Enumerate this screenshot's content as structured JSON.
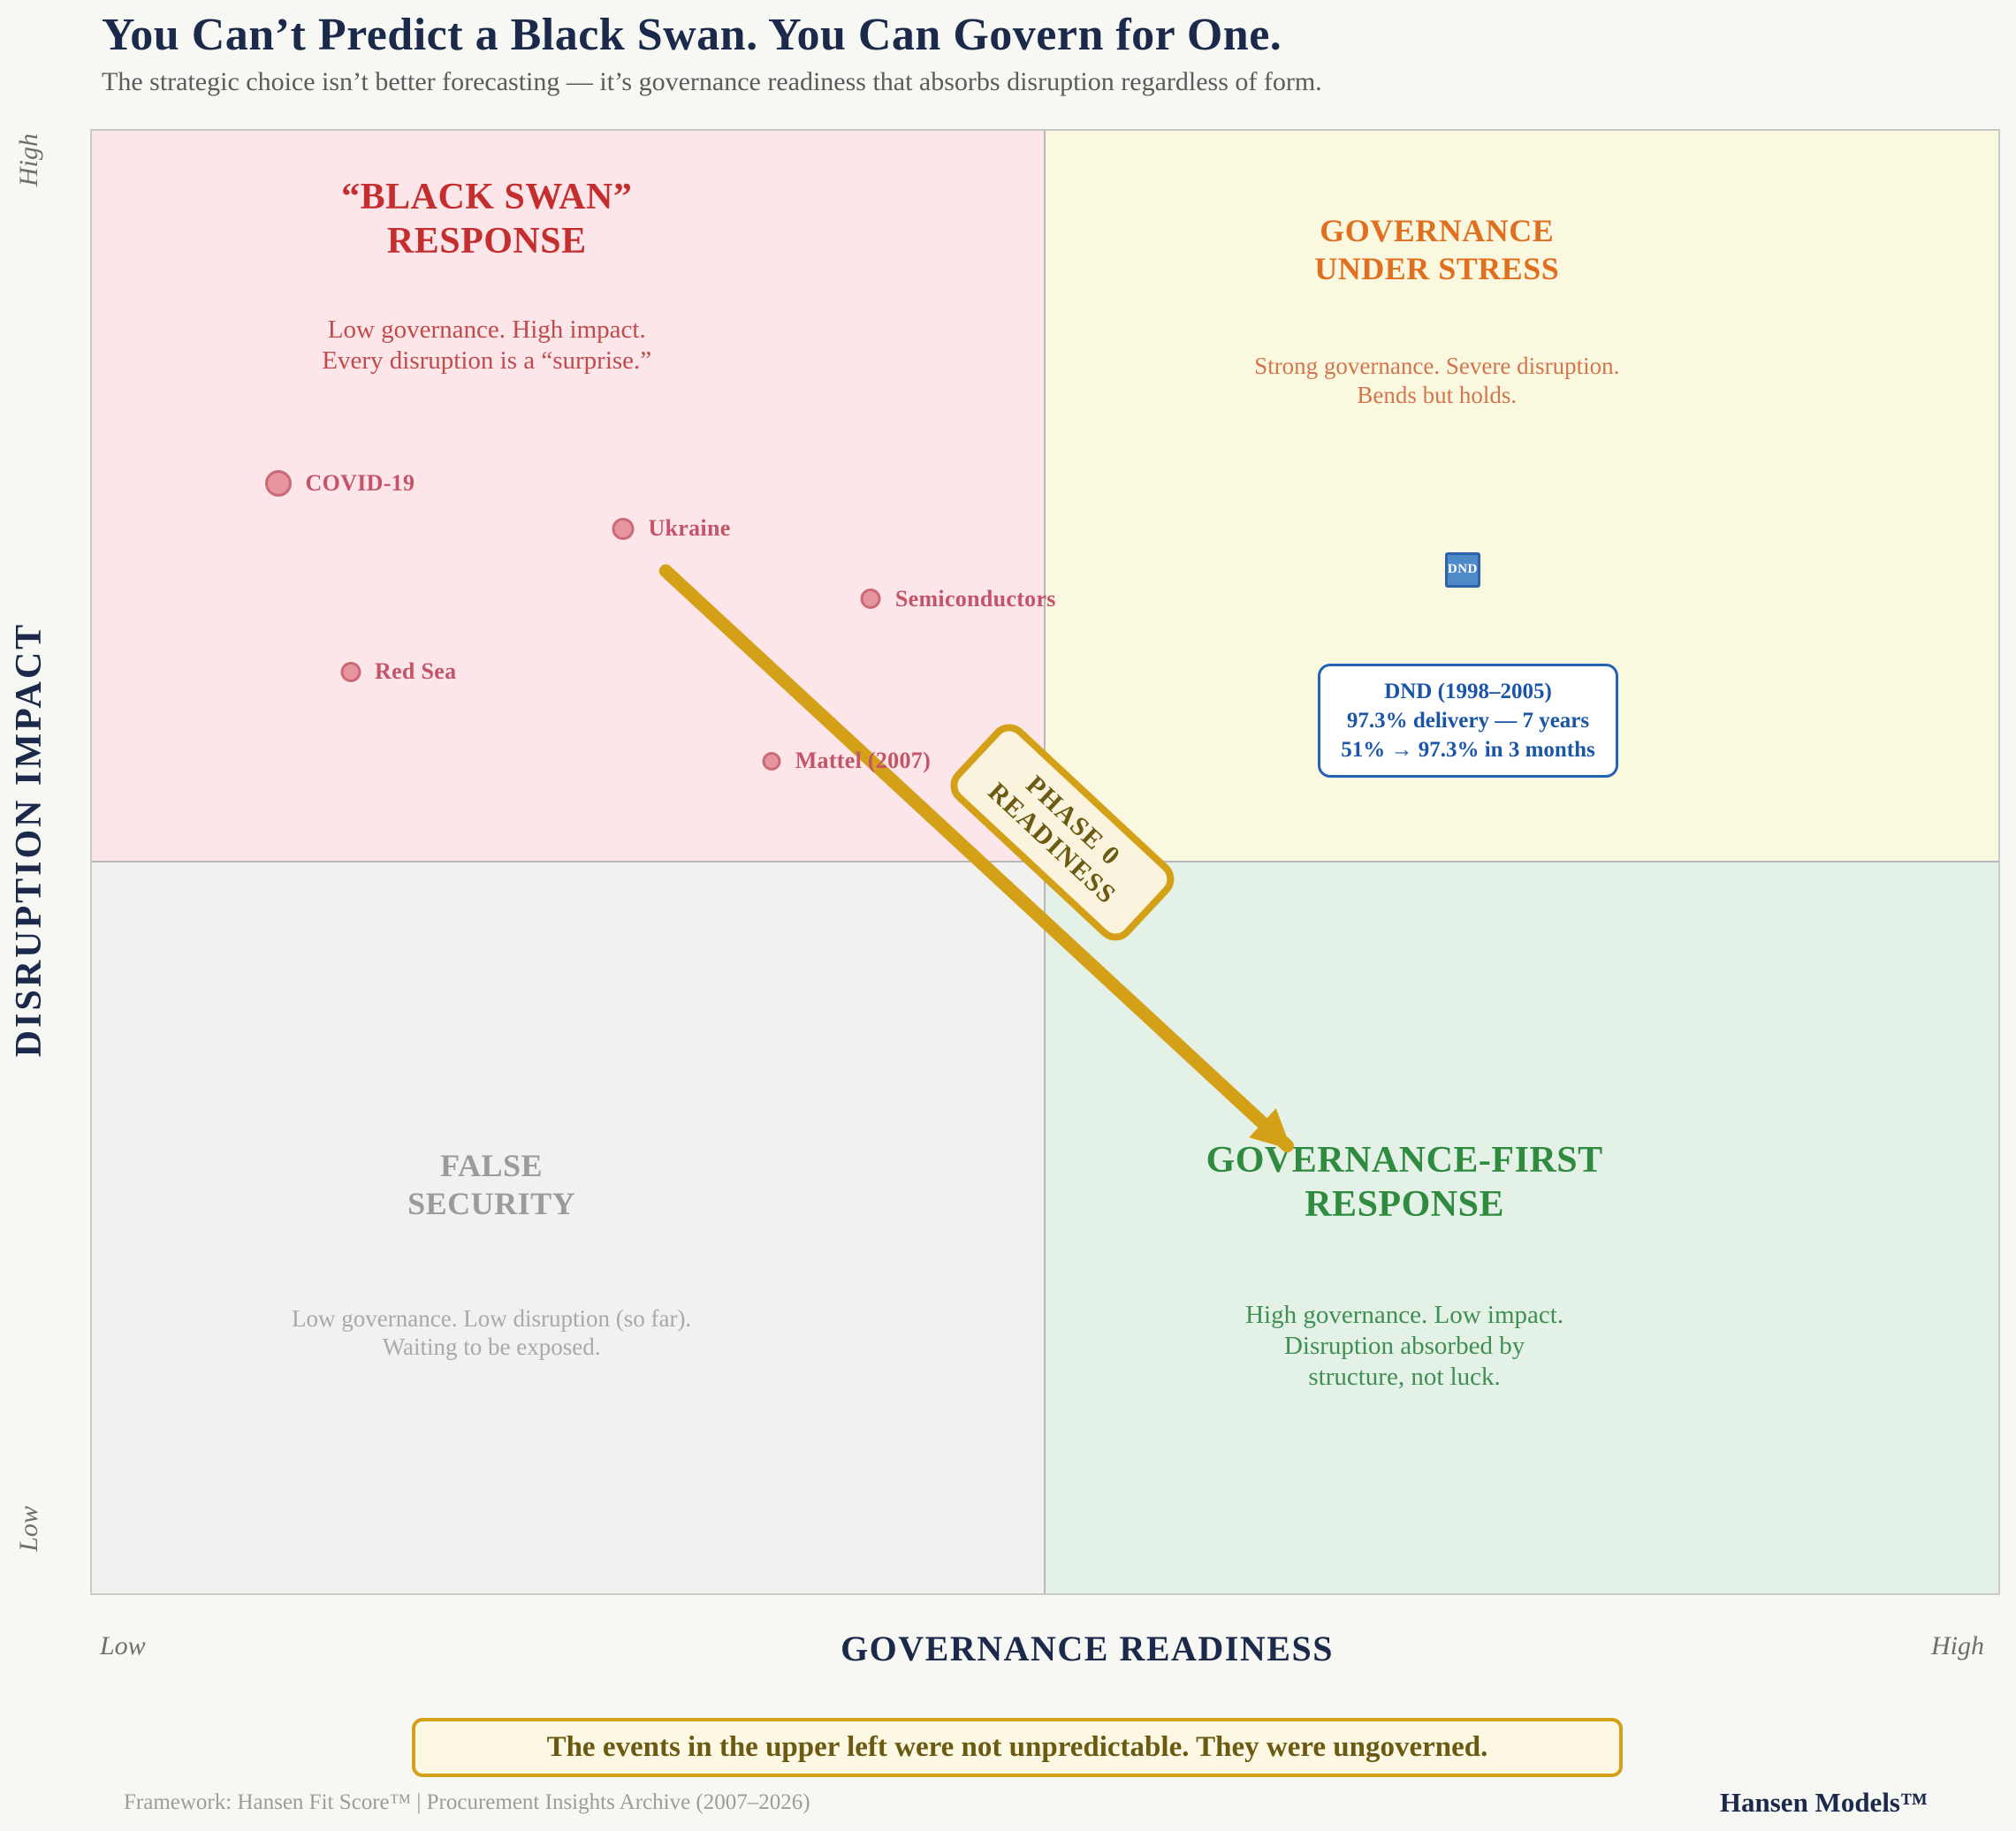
{
  "theme": {
    "page-bg": "#f7f7f4",
    "navy": "#1b2a4a",
    "gold": "#d4a017",
    "gold-text": "#6b5a12",
    "cream": "#faf4de",
    "banner-bg": "#fdf8e3",
    "dot-fill": "#e6949e",
    "dot-stroke": "#ca6a76",
    "dot-label": "#c45568",
    "blue-fill": "#4e89c8",
    "blue-stroke": "#2e63ab",
    "callout-border": "#2163b4",
    "callout-text": "#1a55a8",
    "divider": "#b8b8b8"
  },
  "header": {
    "title": "You Can’t Predict a Black Swan. You Can Govern for One.",
    "subtitle": "The strategic choice isn’t better forecasting — it’s governance readiness that absorbs disruption regardless of form."
  },
  "axes": {
    "y_label": "DISRUPTION IMPACT",
    "y_high": "High",
    "y_low": "Low",
    "x_label": "GOVERNANCE READINESS",
    "x_low": "Low",
    "x_high": "High"
  },
  "quadrants": {
    "top_left": {
      "bg": "#fce6ea",
      "title_color": "#c52e2e",
      "desc_color": "#c14b4b",
      "title_line1": "“BLACK SWAN”",
      "title_line2": "RESPONSE",
      "desc_line1": "Low governance. High impact.",
      "desc_line2": "Every disruption is a “surprise.”"
    },
    "top_right": {
      "bg": "#faf8de",
      "title_color": "#e07020",
      "desc_color": "#d3754e",
      "title_line1": "GOVERNANCE",
      "title_line2": "UNDER STRESS",
      "desc_line1": "Strong governance. Severe disruption.",
      "desc_line2": "Bends but holds."
    },
    "bottom_left": {
      "bg": "#f1f1f0",
      "title_color": "#9b9b9b",
      "desc_color": "#a9a9a9",
      "title_line1": "FALSE",
      "title_line2": "SECURITY",
      "desc_line1": "Low governance. Low disruption (so far).",
      "desc_line2": "Waiting to be exposed."
    },
    "bottom_right": {
      "bg": "#e4f1e6",
      "title_color": "#2f8b3f",
      "desc_color": "#3f8f52",
      "title_line1": "GOVERNANCE-FIRST",
      "title_line2": "RESPONSE",
      "desc_line1": "High governance. Low impact.",
      "desc_line2": "Disruption absorbed by",
      "desc_line3": "structure, not luck."
    }
  },
  "chart_data": {
    "type": "scatter",
    "title": "You Can’t Predict a Black Swan. You Can Govern for One.",
    "xlabel": "GOVERNANCE READINESS",
    "ylabel": "DISRUPTION IMPACT",
    "xlim": [
      0,
      1
    ],
    "ylim": [
      0,
      1
    ],
    "x_range_labels": [
      "Low",
      "High"
    ],
    "y_range_labels": [
      "Low",
      "High"
    ],
    "grid": "2x2 quadrants",
    "points": [
      {
        "label": "COVID-19",
        "x": 0.099,
        "y": 0.759,
        "marker": "circle",
        "size": 30,
        "color": "#e6949e"
      },
      {
        "label": "Ukraine",
        "x": 0.28,
        "y": 0.728,
        "marker": "circle",
        "size": 25,
        "color": "#e6949e"
      },
      {
        "label": "Semiconductors",
        "x": 0.41,
        "y": 0.68,
        "marker": "circle",
        "size": 23,
        "color": "#e6949e"
      },
      {
        "label": "Red Sea",
        "x": 0.137,
        "y": 0.63,
        "marker": "circle",
        "size": 23,
        "color": "#e6949e"
      },
      {
        "label": "Mattel (2007)",
        "x": 0.358,
        "y": 0.569,
        "marker": "circle",
        "size": 21,
        "color": "#e6949e"
      },
      {
        "label": "DND",
        "x": 0.719,
        "y": 0.7,
        "marker": "square",
        "size": 40,
        "color": "#4e89c8"
      }
    ],
    "arrow": {
      "from_x": 0.301,
      "from_y": 0.699,
      "to_x": 0.627,
      "to_y": 0.306,
      "color": "#d4a017",
      "label": "PHASE 0 READINESS"
    }
  },
  "annotations": {
    "phase_line1": "PHASE 0",
    "phase_line2": "READINESS",
    "dnd_callout": {
      "line1": "DND (1998–2005)",
      "line2": "97.3% delivery — 7 years",
      "line3": "51% → 97.3% in 3 months"
    },
    "banner": "The events in the upper left were not unpredictable. They were ungoverned."
  },
  "footer": {
    "left": "Framework: Hansen Fit Score™  |  Procurement Insights Archive (2007–2026)",
    "right": "Hansen Models™"
  }
}
